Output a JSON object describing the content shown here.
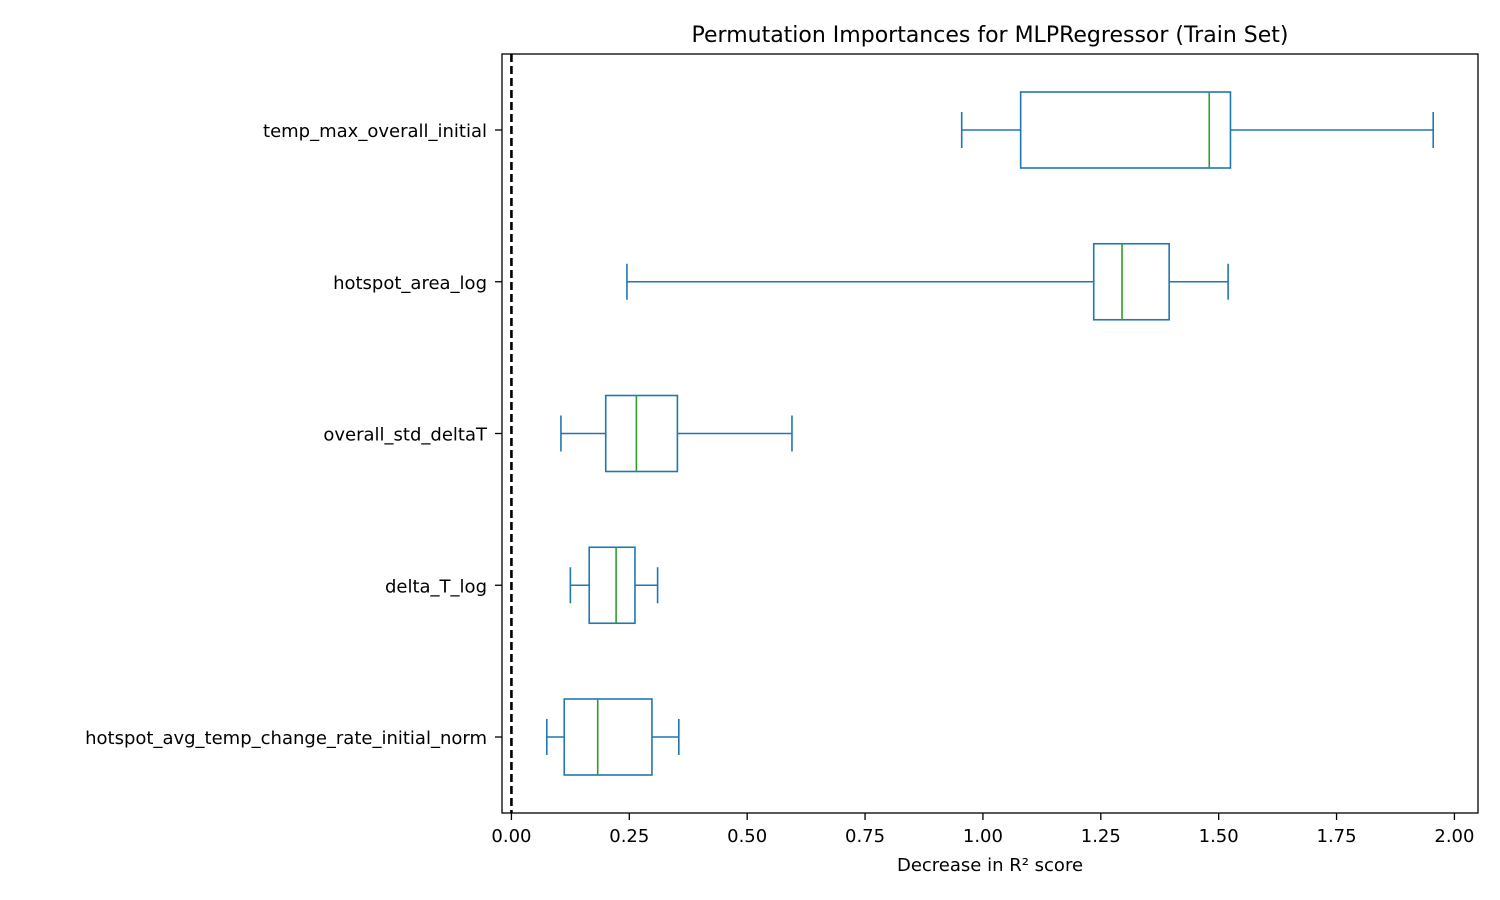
{
  "chart_data": {
    "type": "boxplot",
    "orientation": "horizontal",
    "title": "Permutation Importances for MLPRegressor (Train Set)",
    "xlabel": "Decrease in R² score",
    "ylabel": "",
    "xlim": [
      -0.02,
      2.05
    ],
    "xticks": [
      0.0,
      0.25,
      0.5,
      0.75,
      1.0,
      1.25,
      1.5,
      1.75,
      2.0
    ],
    "xtick_labels": [
      "0.00",
      "0.25",
      "0.50",
      "0.75",
      "1.00",
      "1.25",
      "1.50",
      "1.75",
      "2.00"
    ],
    "grid": false,
    "reference_line": {
      "x": 0.0,
      "style": "dashed",
      "color": "#000000"
    },
    "colors": {
      "box": "#1f77b4",
      "median": "#2ca02c"
    },
    "categories": [
      "temp_max_overall_initial",
      "hotspot_area_log",
      "overall_std_deltaT",
      "delta_T_log",
      "hotspot_avg_temp_change_rate_initial_norm"
    ],
    "boxes": [
      {
        "feature": "temp_max_overall_initial",
        "whisker_low": 0.955,
        "q1": 1.08,
        "median": 1.48,
        "q3": 1.525,
        "whisker_high": 1.955
      },
      {
        "feature": "hotspot_area_log",
        "whisker_low": 0.245,
        "q1": 1.235,
        "median": 1.295,
        "q3": 1.395,
        "whisker_high": 1.52
      },
      {
        "feature": "overall_std_deltaT",
        "whisker_low": 0.105,
        "q1": 0.2,
        "median": 0.265,
        "q3": 0.352,
        "whisker_high": 0.595
      },
      {
        "feature": "delta_T_log",
        "whisker_low": 0.125,
        "q1": 0.165,
        "median": 0.222,
        "q3": 0.262,
        "whisker_high": 0.31
      },
      {
        "feature": "hotspot_avg_temp_change_rate_initial_norm",
        "whisker_low": 0.075,
        "q1": 0.112,
        "median": 0.183,
        "q3": 0.298,
        "whisker_high": 0.355
      }
    ]
  }
}
